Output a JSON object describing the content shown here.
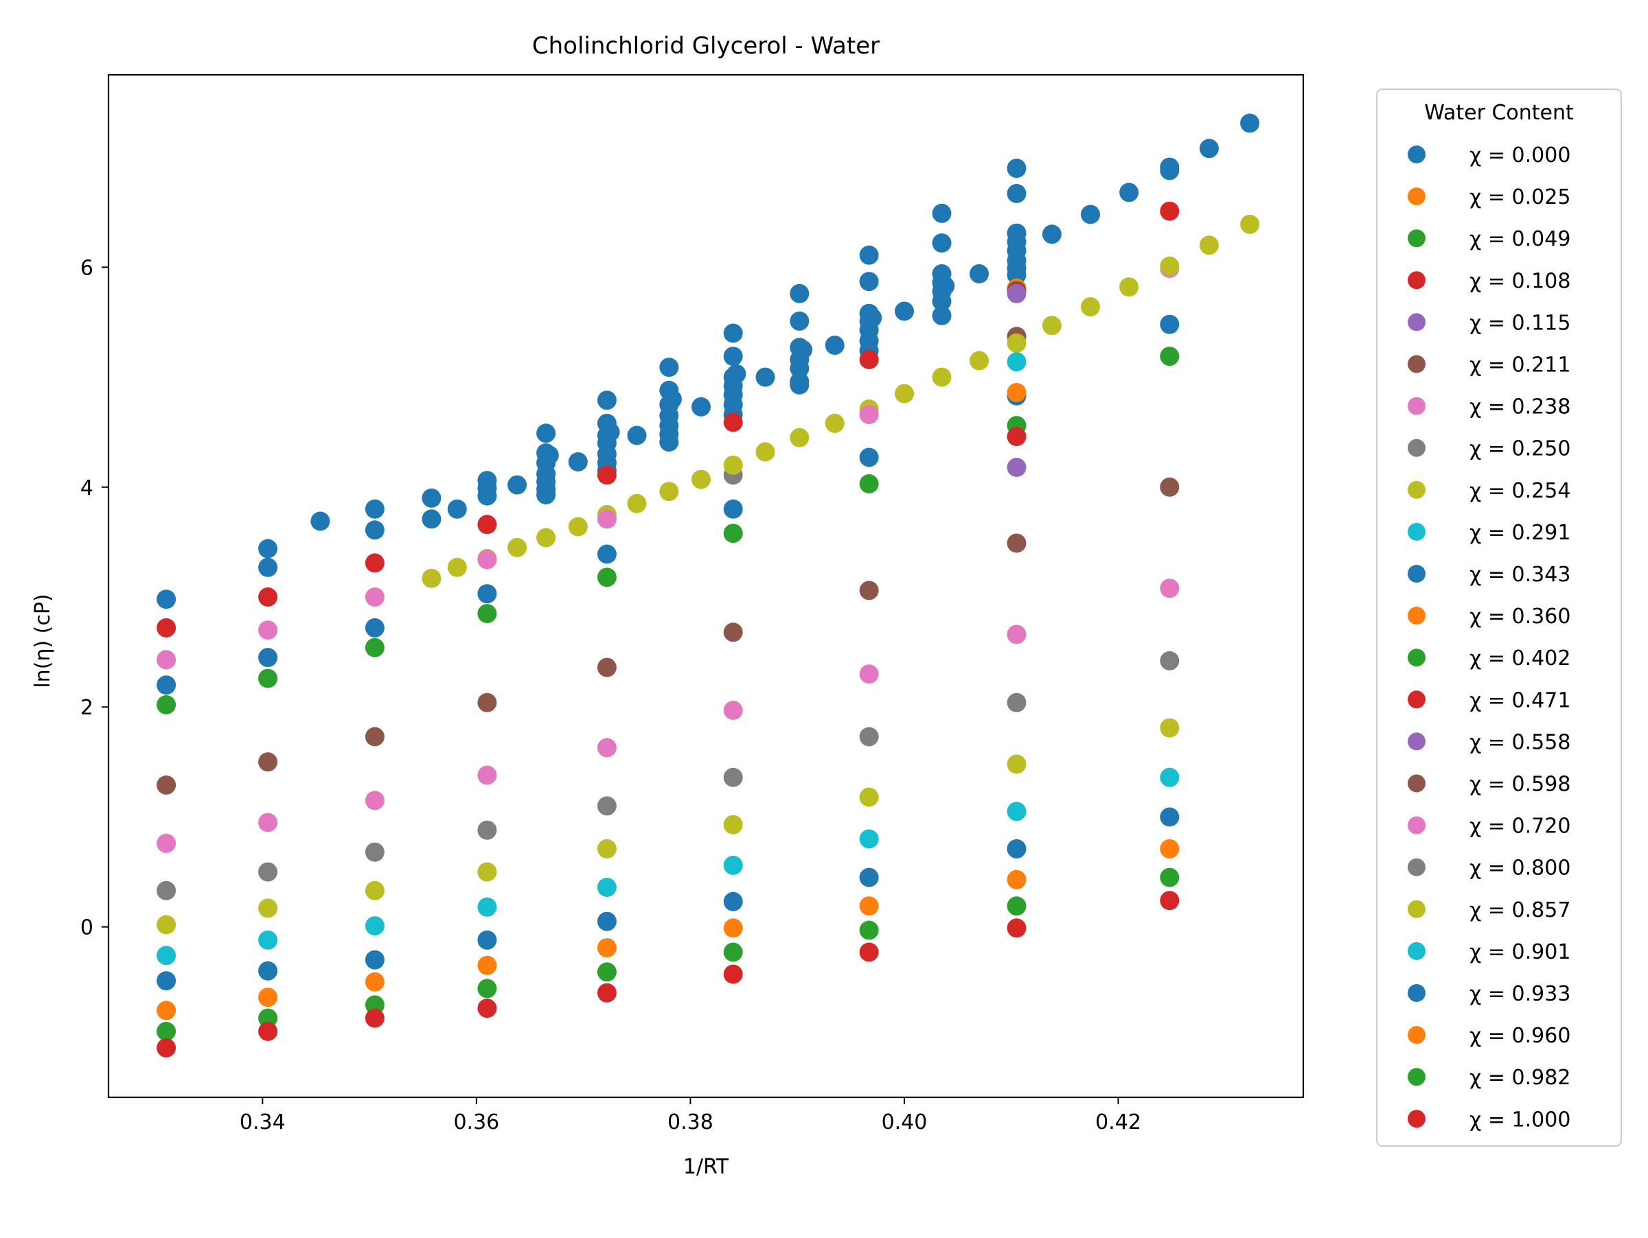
{
  "chart_data": {
    "type": "scatter",
    "title": "Cholinchlorid Glycerol - Water",
    "xlabel": "1/RT",
    "ylabel": "ln(η) (cP)",
    "xlim": [
      0.3256,
      0.4373
    ],
    "ylim": [
      -1.55,
      7.75
    ],
    "xticks": [
      0.34,
      0.36,
      0.38,
      0.4,
      0.42
    ],
    "xtick_labels": [
      "0.34",
      "0.36",
      "0.38",
      "0.40",
      "0.42"
    ],
    "yticks": [
      0,
      2,
      4,
      6
    ],
    "ytick_labels": [
      "0",
      "2",
      "4",
      "6"
    ],
    "grid": false,
    "legend": {
      "title": "Water Content",
      "position": "outside-right"
    },
    "series": [
      {
        "name": "χ = 0.000",
        "color": "#1f77b4",
        "points": [
          [
            0.3454,
            3.69
          ],
          [
            0.3558,
            3.9
          ],
          [
            0.3558,
            3.71
          ],
          [
            0.3582,
            3.8
          ],
          [
            0.361,
            4.06
          ],
          [
            0.361,
            3.99
          ],
          [
            0.361,
            3.92
          ],
          [
            0.3638,
            4.02
          ],
          [
            0.3665,
            4.49
          ],
          [
            0.3665,
            4.31
          ],
          [
            0.3665,
            4.22
          ],
          [
            0.3665,
            4.12
          ],
          [
            0.3665,
            4.05
          ],
          [
            0.3665,
            3.98
          ],
          [
            0.3665,
            3.93
          ],
          [
            0.3668,
            4.29
          ],
          [
            0.3695,
            4.23
          ],
          [
            0.3722,
            4.79
          ],
          [
            0.3722,
            4.58
          ],
          [
            0.3722,
            4.47
          ],
          [
            0.3722,
            4.4
          ],
          [
            0.3722,
            4.3
          ],
          [
            0.3722,
            4.22
          ],
          [
            0.3722,
            4.15
          ],
          [
            0.3725,
            4.5
          ],
          [
            0.375,
            4.47
          ],
          [
            0.378,
            5.09
          ],
          [
            0.378,
            4.88
          ],
          [
            0.378,
            4.75
          ],
          [
            0.378,
            4.65
          ],
          [
            0.378,
            4.56
          ],
          [
            0.378,
            4.48
          ],
          [
            0.378,
            4.41
          ],
          [
            0.3783,
            4.8
          ],
          [
            0.381,
            4.73
          ],
          [
            0.384,
            5.4
          ],
          [
            0.384,
            5.19
          ],
          [
            0.384,
            5.0
          ],
          [
            0.384,
            4.92
          ],
          [
            0.384,
            4.84
          ],
          [
            0.384,
            4.75
          ],
          [
            0.384,
            4.66
          ],
          [
            0.3843,
            5.03
          ],
          [
            0.387,
            5.0
          ],
          [
            0.3902,
            5.76
          ],
          [
            0.3902,
            5.51
          ],
          [
            0.3902,
            5.27
          ],
          [
            0.3902,
            5.16
          ],
          [
            0.3902,
            5.08
          ],
          [
            0.3902,
            4.96
          ],
          [
            0.3902,
            4.93
          ],
          [
            0.3905,
            5.25
          ],
          [
            0.3935,
            5.29
          ],
          [
            0.3967,
            6.11
          ],
          [
            0.3967,
            5.87
          ],
          [
            0.3967,
            5.58
          ],
          [
            0.3967,
            5.51
          ],
          [
            0.3967,
            5.43
          ],
          [
            0.3967,
            5.33
          ],
          [
            0.3967,
            5.24
          ],
          [
            0.397,
            5.54
          ],
          [
            0.4,
            5.6
          ],
          [
            0.4035,
            6.49
          ],
          [
            0.4035,
            6.22
          ],
          [
            0.4035,
            5.94
          ],
          [
            0.4035,
            5.86
          ],
          [
            0.4035,
            5.78
          ],
          [
            0.4035,
            5.69
          ],
          [
            0.4035,
            5.56
          ],
          [
            0.4038,
            5.83
          ],
          [
            0.407,
            5.94
          ],
          [
            0.4105,
            6.9
          ],
          [
            0.4105,
            6.67
          ],
          [
            0.4105,
            6.31
          ],
          [
            0.4105,
            6.23
          ],
          [
            0.4105,
            6.15
          ],
          [
            0.4105,
            6.06
          ],
          [
            0.4105,
            5.99
          ],
          [
            0.4105,
            5.93
          ],
          [
            0.4138,
            6.3
          ],
          [
            0.4174,
            6.48
          ],
          [
            0.421,
            6.68
          ],
          [
            0.4248,
            6.91
          ],
          [
            0.4248,
            6.88
          ],
          [
            0.4285,
            7.08
          ],
          [
            0.4323,
            7.31
          ]
        ]
      },
      {
        "name": "χ = 0.025",
        "color": "#ff7f0e",
        "points": [
          [
            0.4105,
            5.81
          ]
        ]
      },
      {
        "name": "χ = 0.049",
        "color": "#2ca02c",
        "points": [
          [
            0.4105,
            5.79
          ]
        ]
      },
      {
        "name": "χ = 0.108",
        "color": "#d62728",
        "points": [
          [
            0.4105,
            5.78
          ],
          [
            0.4248,
            6.51
          ]
        ]
      },
      {
        "name": "χ = 0.115",
        "color": "#9467bd",
        "points": [
          [
            0.4105,
            5.76
          ]
        ]
      },
      {
        "name": "χ = 0.211",
        "color": "#8c564b",
        "points": [
          [
            0.4105,
            5.37
          ]
        ]
      },
      {
        "name": "χ = 0.238",
        "color": "#e377c2",
        "points": [
          [
            0.4248,
            5.99
          ]
        ]
      },
      {
        "name": "χ = 0.250",
        "color": "#7f7f7f",
        "points": [
          [
            0.384,
            4.11
          ]
        ]
      },
      {
        "name": "χ = 0.254",
        "color": "#bcbd22",
        "points": [
          [
            0.3558,
            3.17
          ],
          [
            0.3582,
            3.27
          ],
          [
            0.361,
            3.35
          ],
          [
            0.3638,
            3.45
          ],
          [
            0.3665,
            3.54
          ],
          [
            0.3695,
            3.64
          ],
          [
            0.3722,
            3.75
          ],
          [
            0.375,
            3.85
          ],
          [
            0.378,
            3.96
          ],
          [
            0.381,
            4.07
          ],
          [
            0.384,
            4.2
          ],
          [
            0.387,
            4.32
          ],
          [
            0.3902,
            4.45
          ],
          [
            0.3935,
            4.58
          ],
          [
            0.3967,
            4.71
          ],
          [
            0.4,
            4.85
          ],
          [
            0.4035,
            5.0
          ],
          [
            0.407,
            5.15
          ],
          [
            0.4105,
            5.31
          ],
          [
            0.4138,
            5.47
          ],
          [
            0.4174,
            5.64
          ],
          [
            0.421,
            5.82
          ],
          [
            0.4248,
            6.01
          ],
          [
            0.4285,
            6.2
          ],
          [
            0.4323,
            6.39
          ]
        ]
      },
      {
        "name": "χ = 0.291",
        "color": "#17becf",
        "points": [
          [
            0.4105,
            5.14
          ]
        ]
      },
      {
        "name": "χ = 0.343",
        "color": "#1f77b4",
        "points": [
          [
            0.331,
            2.98
          ],
          [
            0.3405,
            3.44
          ],
          [
            0.3405,
            3.27
          ],
          [
            0.3505,
            3.8
          ],
          [
            0.3505,
            3.61
          ],
          [
            0.361,
            3.03
          ],
          [
            0.3722,
            3.39
          ],
          [
            0.384,
            3.8
          ],
          [
            0.3967,
            4.27
          ],
          [
            0.4105,
            4.83
          ],
          [
            0.4248,
            5.48
          ]
        ]
      },
      {
        "name": "χ = 0.360",
        "color": "#ff7f0e",
        "points": [
          [
            0.4105,
            4.86
          ]
        ]
      },
      {
        "name": "χ = 0.402",
        "color": "#2ca02c",
        "points": [
          [
            0.361,
            2.85
          ],
          [
            0.3722,
            3.18
          ],
          [
            0.384,
            3.58
          ],
          [
            0.3967,
            4.03
          ],
          [
            0.4105,
            4.56
          ],
          [
            0.4248,
            5.19
          ]
        ]
      },
      {
        "name": "χ = 0.471",
        "color": "#d62728",
        "points": [
          [
            0.331,
            2.72
          ],
          [
            0.3405,
            3.0
          ],
          [
            0.3505,
            3.31
          ],
          [
            0.361,
            3.66
          ],
          [
            0.3722,
            4.11
          ],
          [
            0.384,
            4.59
          ],
          [
            0.3967,
            5.16
          ],
          [
            0.4105,
            4.46
          ]
        ]
      },
      {
        "name": "χ = 0.558",
        "color": "#9467bd",
        "points": [
          [
            0.4105,
            4.18
          ]
        ]
      },
      {
        "name": "χ = 0.598",
        "color": "#8c564b",
        "points": [
          [
            0.4105,
            3.49
          ],
          [
            0.4248,
            4.0
          ]
        ]
      },
      {
        "name": "χ = 0.720",
        "color": "#e377c2",
        "points": [
          [
            0.331,
            2.43
          ],
          [
            0.3405,
            2.7
          ],
          [
            0.3505,
            3.0
          ],
          [
            0.361,
            3.34
          ],
          [
            0.3722,
            3.71
          ],
          [
            0.3967,
            4.66
          ]
        ]
      },
      {
        "name": "χ = 0.800",
        "color": "#7f7f7f",
        "points": []
      },
      {
        "name": "χ = 0.857",
        "color": "#bcbd22",
        "points": []
      },
      {
        "name": "χ = 0.901",
        "color": "#17becf",
        "points": []
      },
      {
        "name": "χ = 0.933",
        "color": "#1f77b4",
        "points": [
          [
            0.331,
            2.2
          ],
          [
            0.3405,
            2.45
          ],
          [
            0.3505,
            2.72
          ]
        ]
      },
      {
        "name": "χ = 0.960",
        "color": "#ff7f0e",
        "points": []
      },
      {
        "name": "χ = 0.982",
        "color": "#2ca02c",
        "points": [
          [
            0.331,
            2.02
          ],
          [
            0.3405,
            2.26
          ],
          [
            0.3505,
            2.54
          ]
        ]
      },
      {
        "name": "χ = 1.000",
        "color": "#d62728",
        "points": []
      }
    ],
    "extra_series_points": [
      {
        "series_index": 15,
        "points": [
          [
            0.331,
            1.29
          ],
          [
            0.3405,
            1.5
          ],
          [
            0.3505,
            1.73
          ],
          [
            0.361,
            2.04
          ],
          [
            0.3722,
            2.36
          ],
          [
            0.384,
            2.68
          ],
          [
            0.3967,
            3.06
          ]
        ]
      },
      {
        "series_index": 16,
        "points": [
          [
            0.331,
            0.76
          ],
          [
            0.3405,
            0.95
          ],
          [
            0.3505,
            1.15
          ],
          [
            0.361,
            1.38
          ],
          [
            0.3722,
            1.63
          ],
          [
            0.384,
            1.97
          ],
          [
            0.3967,
            2.3
          ],
          [
            0.4105,
            2.66
          ],
          [
            0.4248,
            3.08
          ]
        ]
      },
      {
        "series_index": 17,
        "points": [
          [
            0.331,
            0.33
          ],
          [
            0.3405,
            0.5
          ],
          [
            0.3505,
            0.68
          ],
          [
            0.361,
            0.88
          ],
          [
            0.3722,
            1.1
          ],
          [
            0.384,
            1.36
          ],
          [
            0.3967,
            1.73
          ],
          [
            0.4105,
            2.04
          ],
          [
            0.4248,
            2.42
          ]
        ]
      },
      {
        "series_index": 18,
        "points": [
          [
            0.331,
            0.02
          ],
          [
            0.3405,
            0.17
          ],
          [
            0.3505,
            0.33
          ],
          [
            0.361,
            0.5
          ],
          [
            0.3722,
            0.71
          ],
          [
            0.384,
            0.93
          ],
          [
            0.3967,
            1.18
          ],
          [
            0.4105,
            1.48
          ],
          [
            0.4248,
            1.81
          ]
        ]
      },
      {
        "series_index": 19,
        "points": [
          [
            0.331,
            -0.26
          ],
          [
            0.3405,
            -0.12
          ],
          [
            0.3505,
            0.01
          ],
          [
            0.361,
            0.18
          ],
          [
            0.3722,
            0.36
          ],
          [
            0.384,
            0.56
          ],
          [
            0.3967,
            0.8
          ],
          [
            0.4105,
            1.05
          ],
          [
            0.4248,
            1.36
          ]
        ]
      },
      {
        "series_index": 20,
        "points": [
          [
            0.331,
            -0.49
          ],
          [
            0.3405,
            -0.4
          ],
          [
            0.3505,
            -0.3
          ],
          [
            0.361,
            -0.12
          ],
          [
            0.3722,
            0.05
          ],
          [
            0.384,
            0.23
          ],
          [
            0.3967,
            0.45
          ],
          [
            0.4105,
            0.71
          ],
          [
            0.4248,
            1.0
          ]
        ]
      },
      {
        "series_index": 21,
        "points": [
          [
            0.331,
            -0.76
          ],
          [
            0.3405,
            -0.64
          ],
          [
            0.3505,
            -0.5
          ],
          [
            0.361,
            -0.35
          ],
          [
            0.3722,
            -0.19
          ],
          [
            0.384,
            -0.01
          ],
          [
            0.3967,
            0.19
          ],
          [
            0.4105,
            0.43
          ],
          [
            0.4248,
            0.71
          ]
        ]
      },
      {
        "series_index": 22,
        "points": [
          [
            0.331,
            -0.95
          ],
          [
            0.3405,
            -0.83
          ],
          [
            0.3505,
            -0.71
          ],
          [
            0.361,
            -0.56
          ],
          [
            0.3722,
            -0.41
          ],
          [
            0.384,
            -0.23
          ],
          [
            0.3967,
            -0.03
          ],
          [
            0.4105,
            0.19
          ],
          [
            0.4248,
            0.45
          ]
        ]
      },
      {
        "series_index": 23,
        "points": [
          [
            0.331,
            -1.1
          ],
          [
            0.3405,
            -0.95
          ],
          [
            0.3505,
            -0.83
          ],
          [
            0.361,
            -0.74
          ],
          [
            0.3722,
            -0.6
          ],
          [
            0.384,
            -0.43
          ],
          [
            0.3967,
            -0.23
          ],
          [
            0.4105,
            -0.01
          ],
          [
            0.4248,
            0.24
          ]
        ]
      }
    ]
  }
}
